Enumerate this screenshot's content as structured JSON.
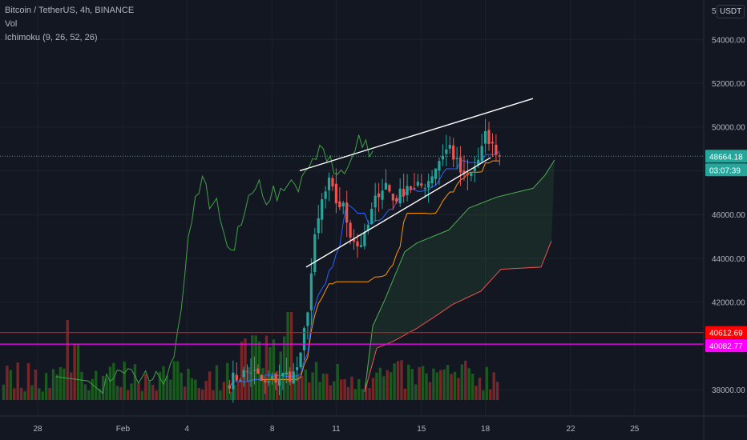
{
  "header": {
    "symbol_line": "Bitcoin / TetherUS, 4h, BINANCE",
    "vol_label": "Vol",
    "ichimoku_label": "Ichimoku (9, 26, 52, 26)"
  },
  "currency_badge": "USDT",
  "colors": {
    "background": "#131722",
    "grid": "#1e222d",
    "candle_up": "#26a69a",
    "candle_down": "#ef5350",
    "tenkan": "#2962ff",
    "kijun": "#ff9800",
    "span_a": "#4caf50",
    "span_b": "#ef5350",
    "chikou": "#43a047",
    "trendline": "#ffffff",
    "level_red": "#ff0000",
    "level_magenta": "#ff00ff",
    "last_price": "#26a69a"
  },
  "price_tags": {
    "last_price": "48664.18",
    "countdown": "03:07:39",
    "level_1": "40612.69",
    "level_2": "40082.77"
  },
  "chart_data": {
    "type": "candlestick",
    "symbol": "BTCUSDT",
    "timeframe": "4h",
    "exchange": "BINANCE",
    "y_ticks": [
      "5",
      "54000.00",
      "52000.00",
      "50000.00",
      "48000.00",
      "46000.00",
      "44000.00",
      "42000.00",
      "38000.00"
    ],
    "x_ticks": [
      "28",
      "Feb",
      "4",
      "8",
      "11",
      "15",
      "18",
      "22",
      "25"
    ],
    "ylim": [
      36800,
      55800
    ],
    "last_price": 48664.18,
    "horizontal_levels": [
      {
        "price": 40612.69,
        "color": "#ff0000"
      },
      {
        "price": 40082.77,
        "color": "#ff00ff"
      }
    ],
    "trendlines": [
      {
        "from": [
          "Feb 9",
          48000
        ],
        "to": [
          "Feb 17",
          51300
        ]
      },
      {
        "from": [
          "Feb 9",
          43600
        ],
        "to": [
          "Feb 18",
          48600
        ]
      }
    ],
    "candles_summary": {
      "range_start": "Feb 6",
      "range_end": "Feb 17",
      "low": 37800,
      "high": 50700
    },
    "ichimoku_params": [
      9,
      26,
      52,
      26
    ]
  }
}
